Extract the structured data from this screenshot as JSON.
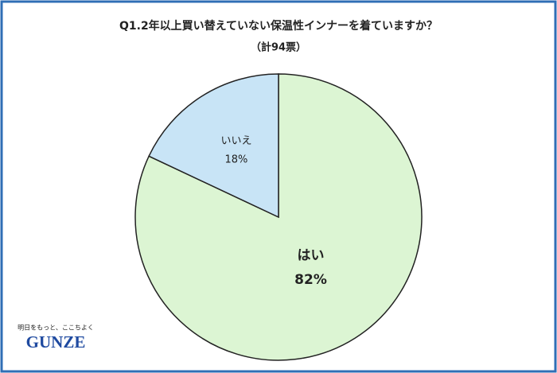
{
  "chart_data": {
    "type": "pie",
    "title": "Q1.2年以上買い替えていない保温性インナーを着ていますか？",
    "subtitle": "（計94票）",
    "categories": [
      "はい",
      "いいえ"
    ],
    "values": [
      82,
      18
    ],
    "value_labels": [
      "82%",
      "18%"
    ],
    "colors": [
      "#dcf5d3",
      "#c8e4f6"
    ]
  },
  "logo": {
    "tagline": "明日をもっと、ここちよく",
    "name": "GUNZE"
  }
}
